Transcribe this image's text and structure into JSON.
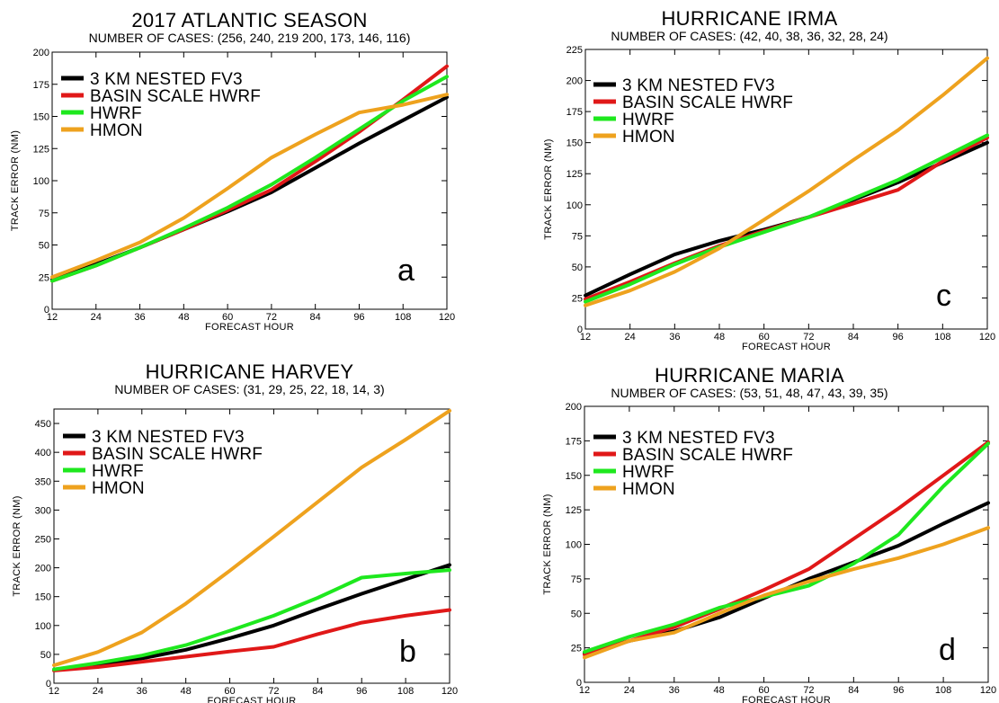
{
  "legend_series": [
    "3 KM NESTED FV3",
    "BASIN SCALE HWRF",
    "HWRF",
    "HMON"
  ],
  "colors": {
    "3 KM NESTED FV3": "#000000",
    "BASIN SCALE HWRF": "#e01818",
    "HWRF": "#1ee81e",
    "HMON": "#eea21e"
  },
  "chart_data": [
    {
      "type": "line",
      "title": "2017 ATLANTIC SEASON",
      "subtitle": "NUMBER OF CASES: (256, 240, 219 200, 173, 146, 116)",
      "xlabel": "FORECAST HOUR",
      "ylabel": "TRACK ERROR  (NM)",
      "panel_label": "a",
      "x": [
        12,
        24,
        36,
        48,
        60,
        72,
        84,
        96,
        108,
        120
      ],
      "xlim": [
        12,
        120
      ],
      "ylim": [
        0,
        200
      ],
      "yticks": [
        0,
        25,
        50,
        75,
        100,
        125,
        150,
        175,
        200
      ],
      "series": [
        {
          "name": "3 KM NESTED FV3",
          "x": [
            12,
            24,
            36,
            48,
            60,
            72,
            84,
            96,
            108,
            120
          ],
          "values": [
            23,
            35,
            48,
            62,
            76,
            91,
            110,
            129,
            147,
            165
          ]
        },
        {
          "name": "BASIN SCALE HWRF",
          "x": [
            12,
            24,
            36,
            48,
            60,
            72,
            84,
            96,
            108,
            120
          ],
          "values": [
            22,
            34,
            48,
            62,
            77,
            93,
            115,
            138,
            163,
            189
          ]
        },
        {
          "name": "HWRF",
          "x": [
            12,
            24,
            36,
            48,
            60,
            72,
            84,
            96,
            108,
            120
          ],
          "values": [
            22,
            34,
            48,
            63,
            79,
            97,
            118,
            140,
            162,
            181
          ]
        },
        {
          "name": "HMON",
          "x": [
            12,
            24,
            36,
            48,
            60,
            72,
            84,
            96,
            108,
            120
          ],
          "values": [
            25,
            38,
            52,
            71,
            94,
            118,
            136,
            153,
            159,
            167
          ]
        }
      ]
    },
    {
      "type": "line",
      "title": "HURRICANE IRMA",
      "subtitle": "NUMBER OF CASES: (42, 40, 38, 36, 32, 28, 24)",
      "xlabel": "FORECAST HOUR",
      "ylabel": "TRACK ERROR  (NM)",
      "panel_label": "c",
      "x": [
        12,
        24,
        36,
        48,
        60,
        72,
        84,
        96,
        108,
        120
      ],
      "xlim": [
        12,
        120
      ],
      "ylim": [
        0,
        225
      ],
      "yticks": [
        0,
        25,
        50,
        75,
        100,
        125,
        150,
        175,
        200,
        225
      ],
      "series": [
        {
          "name": "3 KM NESTED FV3",
          "x": [
            12,
            24,
            36,
            48,
            60,
            72,
            84,
            96,
            108,
            120
          ],
          "values": [
            27,
            44,
            60,
            71,
            80,
            90,
            104,
            118,
            134,
            150
          ]
        },
        {
          "name": "BASIN SCALE HWRF",
          "x": [
            12,
            24,
            36,
            48,
            60,
            72,
            84,
            96,
            108,
            120
          ],
          "values": [
            24,
            38,
            53,
            67,
            79,
            90,
            101,
            112,
            135,
            154
          ]
        },
        {
          "name": "HWRF",
          "x": [
            12,
            24,
            36,
            48,
            60,
            72,
            84,
            96,
            108,
            120
          ],
          "values": [
            22,
            36,
            52,
            66,
            78,
            90,
            105,
            120,
            138,
            156
          ]
        },
        {
          "name": "HMON",
          "x": [
            12,
            24,
            36,
            48,
            60,
            72,
            84,
            96,
            108,
            120
          ],
          "values": [
            19,
            31,
            46,
            65,
            88,
            111,
            136,
            160,
            188,
            218
          ]
        }
      ]
    },
    {
      "type": "line",
      "title": "HURRICANE HARVEY",
      "subtitle": "NUMBER OF CASES: (31, 29, 25, 22, 18, 14, 3)",
      "xlabel": "FORECAST HOUR",
      "ylabel": "TRACK ERROR  (NM)",
      "panel_label": "b",
      "x": [
        12,
        24,
        36,
        48,
        60,
        72,
        84,
        96,
        108,
        120
      ],
      "xlim": [
        12,
        120
      ],
      "ylim": [
        0,
        475
      ],
      "yticks": [
        0,
        50,
        100,
        150,
        200,
        250,
        300,
        350,
        400,
        450
      ],
      "series": [
        {
          "name": "3 KM NESTED FV3",
          "x": [
            12,
            24,
            36,
            48,
            60,
            72,
            84,
            96,
            108,
            120
          ],
          "values": [
            23,
            32,
            43,
            58,
            78,
            100,
            128,
            155,
            180,
            205
          ]
        },
        {
          "name": "BASIN SCALE HWRF",
          "x": [
            12,
            24,
            36,
            48,
            60,
            72,
            84,
            96,
            108,
            120
          ],
          "values": [
            22,
            28,
            37,
            46,
            55,
            63,
            85,
            105,
            117,
            127
          ]
        },
        {
          "name": "HWRF",
          "x": [
            12,
            24,
            36,
            48,
            60,
            72,
            84,
            96,
            108,
            120
          ],
          "values": [
            24,
            35,
            48,
            66,
            91,
            117,
            148,
            183,
            190,
            196
          ]
        },
        {
          "name": "HMON",
          "x": [
            12,
            24,
            36,
            48,
            60,
            72,
            84,
            96,
            108,
            120
          ],
          "values": [
            31,
            54,
            88,
            138,
            195,
            254,
            314,
            374,
            422,
            472
          ]
        }
      ]
    },
    {
      "type": "line",
      "title": "HURRICANE MARIA",
      "subtitle": "NUMBER OF CASES: (53, 51, 48, 47, 43, 39, 35)",
      "xlabel": "FORECAST HOUR",
      "ylabel": "TRACK ERROR  (NM)",
      "panel_label": "d",
      "x": [
        12,
        24,
        36,
        48,
        60,
        72,
        84,
        96,
        108,
        120
      ],
      "xlim": [
        12,
        120
      ],
      "ylim": [
        0,
        200
      ],
      "yticks": [
        0,
        25,
        50,
        75,
        100,
        125,
        150,
        175,
        200
      ],
      "series": [
        {
          "name": "3 KM NESTED FV3",
          "x": [
            12,
            24,
            36,
            48,
            60,
            72,
            84,
            96,
            108,
            120
          ],
          "values": [
            21,
            30,
            37,
            47,
            61,
            75,
            87,
            99,
            115,
            130
          ]
        },
        {
          "name": "BASIN SCALE HWRF",
          "x": [
            12,
            24,
            36,
            48,
            60,
            72,
            84,
            96,
            108,
            120
          ],
          "values": [
            20,
            30,
            40,
            53,
            67,
            82,
            104,
            126,
            150,
            174
          ]
        },
        {
          "name": "HWRF",
          "x": [
            12,
            24,
            36,
            48,
            60,
            72,
            84,
            96,
            108,
            120
          ],
          "values": [
            22,
            33,
            42,
            54,
            62,
            70,
            86,
            107,
            142,
            173
          ]
        },
        {
          "name": "HMON",
          "x": [
            12,
            24,
            36,
            48,
            60,
            72,
            84,
            96,
            108,
            120
          ],
          "values": [
            18,
            30,
            36,
            50,
            63,
            73,
            82,
            90,
            100,
            112
          ]
        }
      ]
    }
  ]
}
